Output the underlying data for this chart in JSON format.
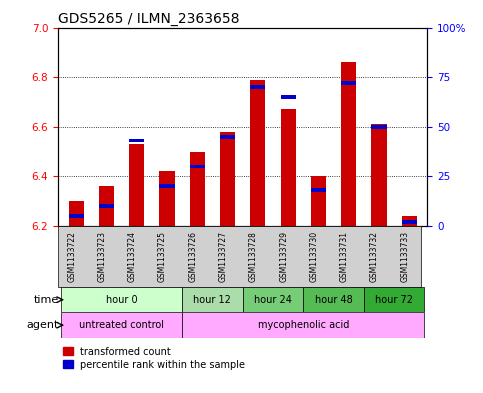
{
  "title": "GDS5265 / ILMN_2363658",
  "samples": [
    "GSM1133722",
    "GSM1133723",
    "GSM1133724",
    "GSM1133725",
    "GSM1133726",
    "GSM1133727",
    "GSM1133728",
    "GSM1133729",
    "GSM1133730",
    "GSM1133731",
    "GSM1133732",
    "GSM1133733"
  ],
  "transformed_count": [
    6.3,
    6.36,
    6.53,
    6.42,
    6.5,
    6.58,
    6.79,
    6.67,
    6.4,
    6.86,
    6.61,
    6.24
  ],
  "percentile_rank": [
    5,
    10,
    43,
    20,
    30,
    45,
    70,
    65,
    18,
    72,
    50,
    2
  ],
  "ylim_left": [
    6.2,
    7.0
  ],
  "ylim_right": [
    0,
    100
  ],
  "yticks_left": [
    6.2,
    6.4,
    6.6,
    6.8,
    7.0
  ],
  "yticks_right": [
    0,
    25,
    50,
    75,
    100
  ],
  "bar_color_red": "#cc0000",
  "bar_color_blue": "#0000cc",
  "base_value": 6.2,
  "time_groups": [
    {
      "label": "hour 0",
      "start": 0,
      "end": 3,
      "color": "#ccffcc"
    },
    {
      "label": "hour 12",
      "start": 4,
      "end": 5,
      "color": "#aaddaa"
    },
    {
      "label": "hour 24",
      "start": 6,
      "end": 7,
      "color": "#77cc77"
    },
    {
      "label": "hour 48",
      "start": 8,
      "end": 9,
      "color": "#55bb55"
    },
    {
      "label": "hour 72",
      "start": 10,
      "end": 11,
      "color": "#33aa33"
    }
  ],
  "agent_groups": [
    {
      "label": "untreated control",
      "start": 0,
      "end": 3,
      "color": "#ffaaff"
    },
    {
      "label": "mycophenolic acid",
      "start": 4,
      "end": 11,
      "color": "#ffaaff"
    }
  ],
  "legend_red": "transformed count",
  "legend_blue": "percentile rank within the sample",
  "xlabel_time": "time",
  "xlabel_agent": "agent",
  "background_color": "#ffffff",
  "title_fontsize": 10,
  "bar_width": 0.5
}
